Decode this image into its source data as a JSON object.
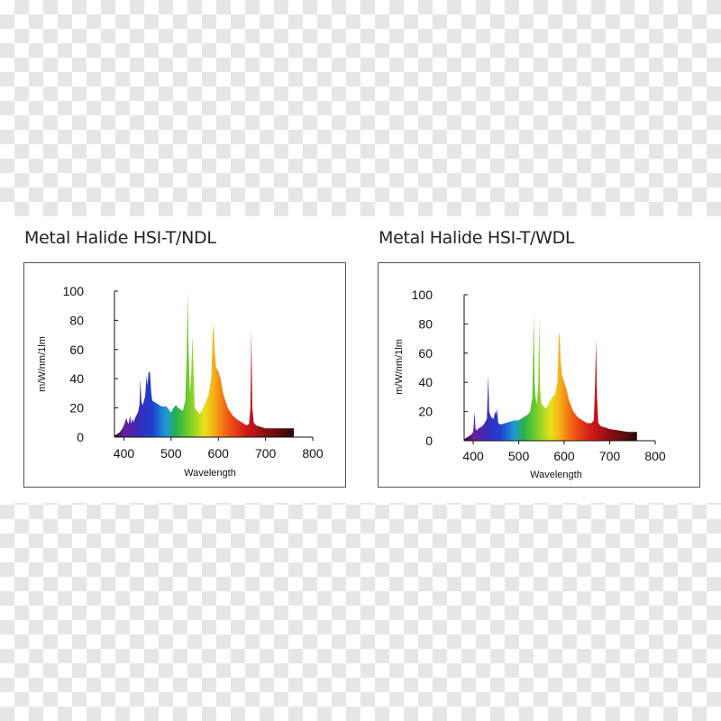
{
  "chart_data": [
    {
      "type": "area",
      "title": "Metal Halide HSI-T/NDL",
      "xlabel": "Wavelength",
      "ylabel": "m/W/nm/1lm",
      "xlim": [
        380,
        800
      ],
      "ylim": [
        0,
        100
      ],
      "x_ticks": [
        400,
        500,
        600,
        700,
        800
      ],
      "y_ticks": [
        0,
        20,
        40,
        60,
        80,
        100
      ],
      "fill": "visible-spectrum gradient",
      "series": [
        {
          "x": [
            380,
            385,
            390,
            395,
            400,
            405,
            408,
            410,
            413,
            415,
            418,
            420,
            425,
            430,
            433,
            435,
            437,
            440,
            445,
            448,
            450,
            452,
            455,
            458,
            460,
            470,
            480,
            490,
            500,
            505,
            510,
            515,
            520,
            525,
            530,
            533,
            535,
            537,
            540,
            543,
            545,
            547,
            550,
            555,
            560,
            565,
            570,
            575,
            580,
            585,
            588,
            590,
            592,
            595,
            600,
            605,
            610,
            615,
            620,
            630,
            640,
            650,
            660,
            665,
            668,
            670,
            672,
            675,
            680,
            690,
            700,
            720,
            740,
            760
          ],
          "values": [
            1,
            2,
            3,
            5,
            8,
            13,
            10,
            9,
            15,
            9,
            13,
            10,
            14,
            17,
            22,
            40,
            24,
            22,
            28,
            42,
            35,
            44,
            45,
            30,
            25,
            23,
            21,
            21,
            17,
            20,
            22,
            20,
            19,
            18,
            25,
            55,
            100,
            60,
            30,
            45,
            70,
            50,
            20,
            18,
            16,
            18,
            22,
            25,
            30,
            40,
            70,
            78,
            60,
            48,
            45,
            40,
            30,
            25,
            20,
            15,
            12,
            10,
            8,
            9,
            20,
            73,
            20,
            10,
            8,
            7,
            6,
            6,
            6,
            6
          ]
        }
      ]
    },
    {
      "type": "area",
      "title": "Metal Halide HSI-T/WDL",
      "xlabel": "Wavelength",
      "ylabel": "m/W/nm/1lm",
      "xlim": [
        380,
        800
      ],
      "ylim": [
        0,
        100
      ],
      "x_ticks": [
        400,
        500,
        600,
        700,
        800
      ],
      "y_ticks": [
        0,
        20,
        40,
        60,
        80,
        100
      ],
      "fill": "visible-spectrum gradient",
      "series": [
        {
          "x": [
            380,
            385,
            390,
            395,
            400,
            403,
            405,
            408,
            410,
            415,
            420,
            425,
            430,
            433,
            435,
            437,
            440,
            445,
            448,
            450,
            452,
            455,
            460,
            470,
            480,
            490,
            500,
            510,
            520,
            525,
            530,
            533,
            535,
            537,
            540,
            543,
            545,
            547,
            550,
            560,
            570,
            575,
            580,
            585,
            588,
            590,
            592,
            595,
            600,
            605,
            610,
            615,
            620,
            630,
            640,
            650,
            660,
            665,
            668,
            670,
            672,
            675,
            680,
            690,
            700,
            720,
            740,
            760
          ],
          "values": [
            1,
            2,
            3,
            4,
            6,
            20,
            8,
            7,
            8,
            9,
            10,
            12,
            15,
            45,
            20,
            18,
            16,
            15,
            20,
            18,
            22,
            12,
            11,
            12,
            13,
            14,
            14,
            16,
            18,
            20,
            30,
            87,
            40,
            30,
            25,
            40,
            85,
            35,
            25,
            22,
            28,
            30,
            32,
            40,
            70,
            75,
            55,
            45,
            40,
            35,
            28,
            24,
            20,
            16,
            14,
            12,
            12,
            14,
            40,
            70,
            30,
            12,
            10,
            9,
            8,
            7,
            6,
            6
          ]
        }
      ]
    }
  ]
}
